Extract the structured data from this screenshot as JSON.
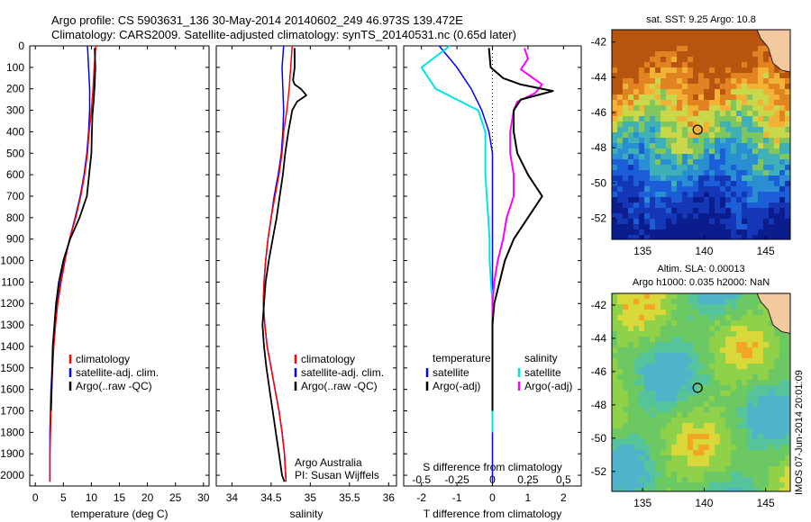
{
  "header": {
    "line1": "Argo profile: CS 5903631_136 30-May-2014 20140602_249 46.973S 139.472E",
    "line2": "Climatology: CARS2009. Satellite-adjusted climatology: synTS_20140531.nc (0.65d later)"
  },
  "colors": {
    "climatology": "#ff0000",
    "satellite": "#0000ff",
    "argo": "#000000",
    "salinity_satellite": "#00e5e5",
    "salinity_argo": "#ff00ff"
  },
  "chart_data": [
    {
      "type": "line",
      "panel": "temperature",
      "xlabel": "temperature (deg C)",
      "ylabel": "",
      "xlim": [
        -1,
        31
      ],
      "ylim": [
        2050,
        0
      ],
      "xticks": [
        "0",
        "5",
        "10",
        "15",
        "20",
        "25",
        "30"
      ],
      "yticks": [
        "0",
        "100",
        "200",
        "300",
        "400",
        "500",
        "600",
        "700",
        "800",
        "900",
        "1000",
        "1100",
        "1200",
        "1300",
        "1400",
        "1500",
        "1600",
        "1700",
        "1800",
        "1900",
        "2000"
      ],
      "legend": [
        "climatology",
        "satellite-adj. clim.",
        "Argo(..raw -QC)"
      ],
      "legend_placement": "lower-middle",
      "series": [
        {
          "name": "climatology",
          "x": [
            10.8,
            10.5,
            10.3,
            10.0,
            9.6,
            9.3,
            8.8,
            8.1,
            7.2,
            6.1,
            5.3,
            4.6,
            4.0,
            3.6,
            3.3,
            3.1,
            2.9,
            2.8,
            2.7,
            2.6,
            2.6
          ],
          "y": [
            0,
            100,
            200,
            300,
            400,
            500,
            600,
            700,
            800,
            900,
            1000,
            1100,
            1200,
            1300,
            1400,
            1500,
            1600,
            1700,
            1800,
            1900,
            2030
          ]
        },
        {
          "name": "satellite-adj. clim.",
          "x": [
            9.3,
            9.5,
            9.7,
            9.7,
            9.5,
            9.2,
            8.7,
            8.0,
            7.1,
            6.1,
            5.2,
            4.5,
            3.9,
            3.5,
            3.2,
            3.0,
            2.8,
            2.7,
            2.6,
            2.6,
            2.6
          ],
          "y": [
            0,
            100,
            200,
            300,
            400,
            500,
            600,
            700,
            800,
            900,
            1000,
            1100,
            1200,
            1300,
            1400,
            1500,
            1600,
            1700,
            1800,
            1900,
            2030
          ]
        },
        {
          "name": "Argo(..raw -QC)",
          "x": [
            10.6,
            10.7,
            10.6,
            10.4,
            10.2,
            10.1,
            10.0,
            9.6,
            9.2,
            7.9,
            6.2,
            5.0,
            4.2,
            3.7,
            3.4,
            3.1,
            3.0,
            2.9,
            2.8
          ],
          "y": [
            10,
            100,
            180,
            260,
            320,
            400,
            500,
            600,
            700,
            800,
            900,
            1000,
            1100,
            1200,
            1300,
            1400,
            1500,
            1600,
            1700
          ]
        }
      ]
    },
    {
      "type": "line",
      "panel": "salinity",
      "xlabel": "salinity",
      "xlim": [
        33.8,
        36.1
      ],
      "ylim": [
        2050,
        0
      ],
      "xticks": [
        "34",
        "34.5",
        "35",
        "35.5",
        "36"
      ],
      "legend": [
        "climatology",
        "satellite-adj. clim.",
        "Argo(..raw -QC)"
      ],
      "annotation": [
        "Argo Australia",
        "PI: Susan Wijffels"
      ],
      "series": [
        {
          "name": "climatology",
          "x": [
            34.77,
            34.75,
            34.73,
            34.7,
            34.66,
            34.64,
            34.6,
            34.55,
            34.5,
            34.46,
            34.43,
            34.41,
            34.4,
            34.42,
            34.45,
            34.5,
            34.55,
            34.6,
            34.64,
            34.67,
            34.69
          ],
          "y": [
            0,
            100,
            200,
            300,
            400,
            500,
            600,
            700,
            800,
            900,
            1000,
            1100,
            1200,
            1300,
            1400,
            1500,
            1600,
            1700,
            1800,
            1900,
            2030
          ]
        },
        {
          "name": "satellite-adj. clim.",
          "x": [
            34.66,
            34.64,
            34.65,
            34.66,
            34.65,
            34.63,
            34.59,
            34.54,
            34.5,
            34.46,
            34.43,
            34.41,
            34.4,
            34.42,
            34.45,
            34.5,
            34.55,
            34.6,
            34.64,
            34.67,
            34.69
          ],
          "y": [
            0,
            100,
            200,
            300,
            400,
            500,
            600,
            700,
            800,
            900,
            1000,
            1100,
            1200,
            1300,
            1400,
            1500,
            1600,
            1700,
            1800,
            1900,
            2030
          ]
        },
        {
          "name": "Argo(..raw -QC)",
          "x": [
            34.8,
            34.8,
            34.78,
            34.8,
            34.88,
            34.95,
            34.83,
            34.77,
            34.72,
            34.68,
            34.65,
            34.61,
            34.57,
            34.52,
            34.47,
            34.43,
            34.41,
            34.39,
            34.41,
            34.44,
            34.48,
            34.52,
            34.56,
            34.6,
            34.64,
            34.67
          ],
          "y": [
            10,
            100,
            160,
            180,
            200,
            230,
            260,
            300,
            400,
            500,
            600,
            700,
            800,
            900,
            1000,
            1100,
            1200,
            1300,
            1400,
            1500,
            1600,
            1700,
            1800,
            1900,
            2000,
            2030
          ]
        }
      ]
    },
    {
      "type": "line",
      "panel": "difference",
      "xlabel": "T difference from climatology",
      "title_bottom": "S difference from climatology",
      "xlim": [
        -2.5,
        2.5
      ],
      "ylim": [
        2050,
        0
      ],
      "xticks": [
        "-2",
        "-1",
        "0",
        "1",
        "2"
      ],
      "sticks": [
        "-0.5",
        "-0.25",
        "0",
        "0.25",
        "0.5"
      ],
      "legend_temperature_title": "temperature",
      "legend_salinity_title": "salinity",
      "legend": [
        "satellite",
        "Argo(-adj)",
        "satellite",
        "Argo(-adj)"
      ],
      "series": [
        {
          "name": "satellite",
          "x": [
            -1.5,
            -1.0,
            -0.6,
            -0.3,
            -0.1,
            0.0,
            0.0,
            0.0,
            0.0,
            0.0,
            0.0,
            0.0,
            0.0,
            0.0,
            0.0,
            0.0,
            0.0
          ],
          "y": [
            0,
            100,
            200,
            300,
            400,
            500,
            600,
            700,
            800,
            900,
            1000,
            1100,
            1200,
            1300,
            1500,
            1800,
            2030
          ]
        },
        {
          "name": "satellite salinity",
          "x": [
            -0.3,
            -0.5,
            -0.4,
            -0.1,
            -0.05,
            -0.05,
            -0.05,
            -0.04,
            -0.03,
            -0.02,
            -0.02,
            -0.01,
            0.0,
            0.0,
            0.0
          ],
          "y": [
            0,
            100,
            200,
            300,
            400,
            500,
            600,
            700,
            800,
            900,
            1000,
            1100,
            1200,
            1500,
            1800
          ]
        },
        {
          "name": "Argo(-adj)",
          "x": [
            -0.1,
            -0.05,
            0.3,
            0.8,
            1.7,
            0.8,
            0.6,
            0.6,
            0.7,
            1.0,
            1.4,
            1.0,
            0.6,
            0.35,
            0.2,
            0.05,
            0.0,
            0.0,
            0.0
          ],
          "y": [
            10,
            100,
            150,
            180,
            210,
            250,
            300,
            400,
            500,
            600,
            700,
            800,
            900,
            1000,
            1100,
            1200,
            1300,
            1500,
            1700
          ]
        },
        {
          "name": "Argo(-adj) salinity",
          "x": [
            0.9,
            1.0,
            0.8,
            1.4,
            1.2,
            0.7,
            0.6,
            0.5,
            0.5,
            0.6,
            0.6,
            0.4,
            0.3,
            0.15,
            0.05,
            0.0,
            0.0
          ],
          "y": [
            10,
            60,
            110,
            180,
            220,
            260,
            300,
            400,
            500,
            600,
            700,
            800,
            900,
            1000,
            1100,
            1200,
            1500
          ]
        }
      ]
    }
  ],
  "map_sst": {
    "title": "sat. SST: 9.25 Argo: 10.8",
    "xticks": [
      "135",
      "140",
      "145"
    ],
    "yticks": [
      "-42",
      "-44",
      "-46",
      "-48",
      "-50",
      "-52"
    ],
    "xlim": [
      132.5,
      147
    ],
    "ylim": [
      -53.2,
      -41.3
    ],
    "point": {
      "lon": 139.472,
      "lat": -46.973
    }
  },
  "map_sla": {
    "title1": "Altim. SLA: 0.00013",
    "title2": "Argo h1000: 0.035 h2000: NaN",
    "xticks": [
      "135",
      "140",
      "145"
    ],
    "yticks": [
      "-42",
      "-44",
      "-46",
      "-48",
      "-50",
      "-52"
    ],
    "xlim": [
      132.5,
      147
    ],
    "ylim": [
      -53.2,
      -41.3
    ],
    "point": {
      "lon": 139.472,
      "lat": -46.973
    }
  },
  "imos_stamp": "IMOS 07-Jun-2014 20:01:09"
}
